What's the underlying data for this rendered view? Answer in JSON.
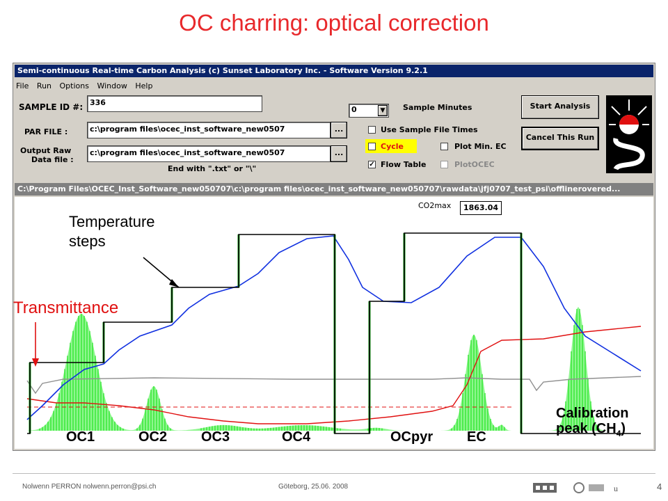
{
  "slide": {
    "title": "OC charring: optical correction",
    "footer_author": "Nolwenn PERRON   nolwenn.perron@psi.ch",
    "footer_place": "Göteborg, 25.06. 2008",
    "page_number": "4"
  },
  "window": {
    "title": "Semi-continuous Real-time Carbon Analysis (c) Sunset Laboratory Inc. - Software Version 9.2.1",
    "menu": [
      "File",
      "Run",
      "Options",
      "Window",
      "Help"
    ]
  },
  "form": {
    "sample_id_label": "SAMPLE ID #:",
    "sample_id_value": "336",
    "par_file_label": "PAR FILE :",
    "par_file_value": "c:\\program files\\ocec_inst_software_new0507",
    "output_label_1": "Output Raw",
    "output_label_2": "Data file :",
    "output_value": "c:\\program files\\ocec_inst_software_new0507",
    "browse_label": "...",
    "end_with_hint": "End with \".txt\" or \"\\\"",
    "sample_minutes_value": "0",
    "sample_minutes_label": "Sample Minutes",
    "use_sample_file_times": "Use Sample File Times",
    "cycle": "Cycle",
    "flow_table": "Flow Table",
    "plot_min_ec": "Plot Min. EC",
    "plot_ocec": "PlotOCEC",
    "start_analysis": "Start Analysis",
    "cancel_run": "Cancel This Run"
  },
  "plot": {
    "title": "C:\\Program Files\\OCEC_Inst_Software_new050707\\c:\\program files\\ocec_inst_software_new050707\\rawdata\\jfj0707_test_psi\\offlinerovered...",
    "co2max_label": "CO2max",
    "co2max_value": "1863.04",
    "annotations": {
      "temperature_1": "Temperature",
      "temperature_2": "steps",
      "transmittance": "Transmittance",
      "calibration_1": "Calibration",
      "calibration_2": "peak (CH",
      "calibration_sub": "4",
      "calibration_end": ")"
    },
    "peaks": [
      "OC1",
      "OC2",
      "OC3",
      "OC4",
      "OCpyr",
      "EC"
    ]
  },
  "colors": {
    "title_red": "#e8282b",
    "fid_green": "#22dd22",
    "temperature_blue": "#1030e0",
    "laser_red": "#e01010",
    "step_black": "#000000",
    "pressure_gray": "#909090",
    "cycle_highlight": "#ffff00"
  }
}
